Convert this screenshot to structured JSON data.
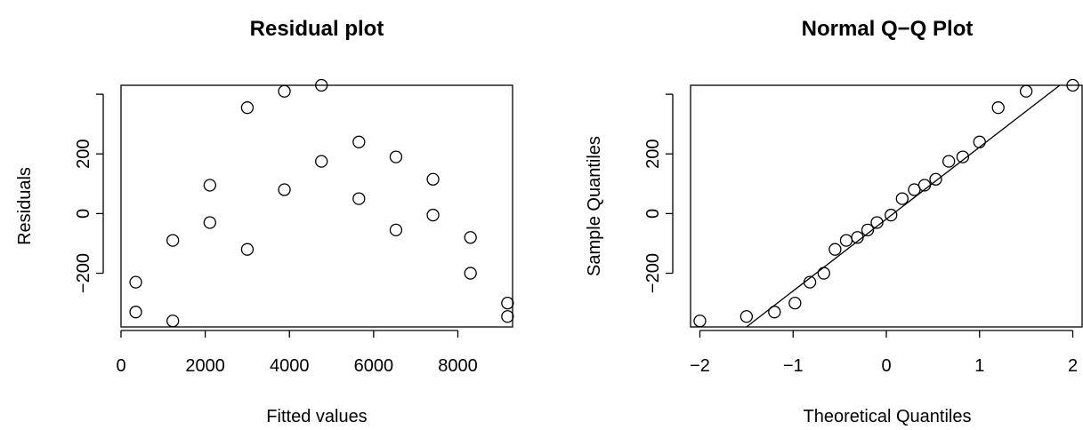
{
  "chart_data": [
    {
      "type": "scatter",
      "title": "Residual plot",
      "xlabel": "Fitted values",
      "ylabel": "Residuals",
      "xlim": [
        0,
        9300
      ],
      "ylim": [
        -380,
        430
      ],
      "x_ticks": [
        0,
        2000,
        4000,
        6000,
        8000
      ],
      "x_tick_labels": [
        "0",
        "2000",
        "4000",
        "6000",
        "8000"
      ],
      "y_ticks": [
        -200,
        0,
        200,
        400
      ],
      "y_tick_labels": [
        "−200",
        "0",
        "200",
        ""
      ],
      "grid": false,
      "points": [
        {
          "x": 350,
          "y": -230
        },
        {
          "x": 350,
          "y": -330
        },
        {
          "x": 1230,
          "y": -90
        },
        {
          "x": 1230,
          "y": -360
        },
        {
          "x": 2110,
          "y": 95
        },
        {
          "x": 2110,
          "y": -30
        },
        {
          "x": 3000,
          "y": 355
        },
        {
          "x": 3000,
          "y": -120
        },
        {
          "x": 3880,
          "y": 410
        },
        {
          "x": 3880,
          "y": 80
        },
        {
          "x": 4760,
          "y": 430
        },
        {
          "x": 4760,
          "y": 175
        },
        {
          "x": 5650,
          "y": 240
        },
        {
          "x": 5650,
          "y": 50
        },
        {
          "x": 6530,
          "y": 190
        },
        {
          "x": 6530,
          "y": -55
        },
        {
          "x": 7410,
          "y": 115
        },
        {
          "x": 7410,
          "y": -5
        },
        {
          "x": 8300,
          "y": -80
        },
        {
          "x": 8300,
          "y": -200
        },
        {
          "x": 9180,
          "y": -300
        },
        {
          "x": 9180,
          "y": -345
        }
      ]
    },
    {
      "type": "scatter",
      "title": "Normal Q−Q Plot",
      "xlabel": "Theoretical Quantiles",
      "ylabel": "Sample Quantiles",
      "xlim": [
        -2.1,
        2.1
      ],
      "ylim": [
        -380,
        430
      ],
      "x_ticks": [
        -2,
        -1,
        0,
        1,
        2
      ],
      "x_tick_labels": [
        "−2",
        "−1",
        "0",
        "1",
        "2"
      ],
      "y_ticks": [
        -200,
        0,
        200,
        400
      ],
      "y_tick_labels": [
        "−200",
        "0",
        "200",
        ""
      ],
      "grid": false,
      "reference_line": {
        "x1": -1.5,
        "y1": -380,
        "x2": 1.86,
        "y2": 455
      },
      "points": [
        {
          "x": -2.0,
          "y": -360
        },
        {
          "x": -1.5,
          "y": -345
        },
        {
          "x": -1.2,
          "y": -330
        },
        {
          "x": -0.98,
          "y": -300
        },
        {
          "x": -0.82,
          "y": -230
        },
        {
          "x": -0.67,
          "y": -200
        },
        {
          "x": -0.55,
          "y": -120
        },
        {
          "x": -0.43,
          "y": -90
        },
        {
          "x": -0.31,
          "y": -80
        },
        {
          "x": -0.2,
          "y": -55
        },
        {
          "x": -0.1,
          "y": -30
        },
        {
          "x": 0.05,
          "y": -5
        },
        {
          "x": 0.17,
          "y": 50
        },
        {
          "x": 0.3,
          "y": 80
        },
        {
          "x": 0.41,
          "y": 95
        },
        {
          "x": 0.53,
          "y": 115
        },
        {
          "x": 0.67,
          "y": 175
        },
        {
          "x": 0.82,
          "y": 190
        },
        {
          "x": 1.0,
          "y": 240
        },
        {
          "x": 1.2,
          "y": 355
        },
        {
          "x": 1.5,
          "y": 410
        },
        {
          "x": 2.0,
          "y": 430
        }
      ]
    }
  ]
}
